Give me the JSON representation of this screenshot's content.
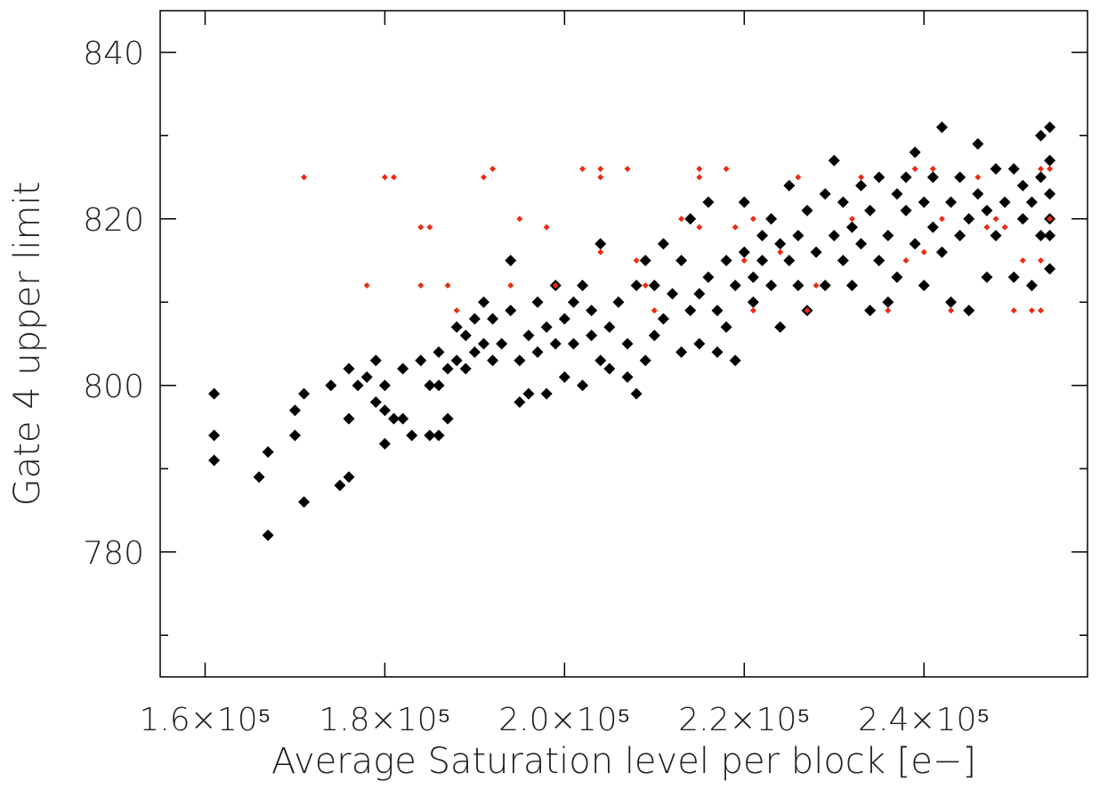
{
  "chart_data": {
    "type": "scatter",
    "x_label": "Average Saturation level per block [e−]",
    "y_label": "Gate 4 upper limit",
    "xlim": [
      155000,
      258200
    ],
    "ylim": [
      765,
      845
    ],
    "xticks": [
      {
        "value": 160000,
        "label": "1.6×10⁵"
      },
      {
        "value": 180000,
        "label": "1.8×10⁵"
      },
      {
        "value": 200000,
        "label": "2.0×10⁵"
      },
      {
        "value": 220000,
        "label": "2.2×10⁵"
      },
      {
        "value": 240000,
        "label": "2.4×10⁵"
      }
    ],
    "yticks": [
      780,
      800,
      820,
      840
    ],
    "yticks_minor": [
      770,
      790,
      810,
      830
    ],
    "series": [
      {
        "color": "#000000",
        "x": [
          161000,
          161000,
          161000,
          166000,
          167000,
          167000,
          170000,
          170000,
          171000,
          171000,
          174000,
          175000,
          176000,
          176000,
          176000,
          177000,
          178000,
          179000,
          179000,
          180000,
          180000,
          180000,
          181000,
          182000,
          182000,
          183000,
          184000,
          185000,
          185000,
          186000,
          186000,
          186000,
          187000,
          187000,
          188000,
          188000,
          189000,
          189000,
          190000,
          190000,
          191000,
          191000,
          192000,
          192000,
          193000,
          194000,
          194000,
          195000,
          195000,
          196000,
          196000,
          197000,
          197000,
          198000,
          198000,
          199000,
          199000,
          200000,
          200000,
          201000,
          201000,
          202000,
          202000,
          203000,
          203000,
          204000,
          204000,
          205000,
          205000,
          206000,
          207000,
          207000,
          208000,
          208000,
          209000,
          209000,
          210000,
          210000,
          211000,
          211000,
          212000,
          213000,
          213000,
          214000,
          214000,
          215000,
          215000,
          216000,
          216000,
          217000,
          217000,
          218000,
          218000,
          219000,
          219000,
          220000,
          220000,
          221000,
          221000,
          222000,
          222000,
          223000,
          223000,
          224000,
          224000,
          225000,
          225000,
          226000,
          226000,
          227000,
          227000,
          228000,
          229000,
          229000,
          230000,
          230000,
          231000,
          231000,
          232000,
          232000,
          233000,
          233000,
          234000,
          234000,
          235000,
          235000,
          236000,
          236000,
          237000,
          237000,
          238000,
          238000,
          239000,
          239000,
          240000,
          240000,
          241000,
          241000,
          242000,
          242000,
          243000,
          243000,
          244000,
          244000,
          245000,
          245000,
          246000,
          246000,
          247000,
          247000,
          248000,
          248000,
          249000,
          250000,
          250000,
          251000,
          251000,
          252000,
          252000,
          253000,
          253000,
          253000,
          254000,
          254000,
          254000,
          254000,
          254000,
          254000
        ],
        "y": [
          799,
          794,
          791,
          789,
          792,
          782,
          797,
          794,
          786,
          799,
          800,
          788,
          802,
          796,
          789,
          800,
          801,
          798,
          803,
          797,
          800,
          793,
          796,
          796,
          802,
          794,
          803,
          794,
          800,
          804,
          800,
          794,
          796,
          802,
          807,
          803,
          802,
          806,
          808,
          804,
          805,
          810,
          803,
          808,
          805,
          809,
          815,
          798,
          803,
          806,
          799,
          804,
          810,
          807,
          799,
          812,
          805,
          808,
          801,
          805,
          810,
          812,
          800,
          806,
          809,
          803,
          817,
          807,
          802,
          810,
          805,
          801,
          812,
          799,
          803,
          815,
          812,
          806,
          808,
          817,
          811,
          804,
          815,
          809,
          820,
          811,
          805,
          813,
          822,
          809,
          804,
          815,
          807,
          812,
          803,
          816,
          822,
          813,
          810,
          818,
          815,
          812,
          820,
          817,
          807,
          824,
          815,
          812,
          818,
          821,
          809,
          816,
          823,
          812,
          827,
          818,
          815,
          822,
          819,
          812,
          824,
          817,
          809,
          821,
          825,
          815,
          818,
          810,
          823,
          813,
          821,
          825,
          817,
          828,
          822,
          812,
          819,
          825,
          816,
          831,
          822,
          810,
          825,
          818,
          820,
          809,
          823,
          829,
          821,
          813,
          826,
          818,
          822,
          826,
          813,
          820,
          824,
          822,
          812,
          818,
          825,
          830,
          831,
          827,
          823,
          820,
          818,
          814
        ]
      },
      {
        "color": "#ee2a10",
        "x": [
          171000,
          178000,
          180000,
          181000,
          184000,
          184000,
          185000,
          187000,
          188000,
          191000,
          192000,
          194000,
          195000,
          198000,
          199000,
          202000,
          204000,
          204000,
          204000,
          207000,
          208000,
          209000,
          210000,
          213000,
          215000,
          215000,
          215000,
          218000,
          219000,
          220000,
          221000,
          221000,
          224000,
          226000,
          227000,
          228000,
          232000,
          233000,
          236000,
          238000,
          239000,
          240000,
          241000,
          242000,
          243000,
          246000,
          247000,
          248000,
          249000,
          250000,
          251000,
          252000,
          253000,
          253000,
          253000,
          254000,
          254000
        ],
        "y": [
          825,
          812,
          825,
          825,
          819,
          812,
          819,
          812,
          809,
          825,
          826,
          812,
          820,
          819,
          812,
          826,
          826,
          825,
          816,
          826,
          815,
          812,
          809,
          820,
          825,
          826,
          819,
          826,
          819,
          815,
          820,
          809,
          816,
          825,
          809,
          812,
          820,
          825,
          809,
          815,
          826,
          816,
          826,
          820,
          809,
          825,
          819,
          820,
          819,
          809,
          815,
          809,
          826,
          815,
          809,
          820,
          826
        ]
      }
    ]
  }
}
